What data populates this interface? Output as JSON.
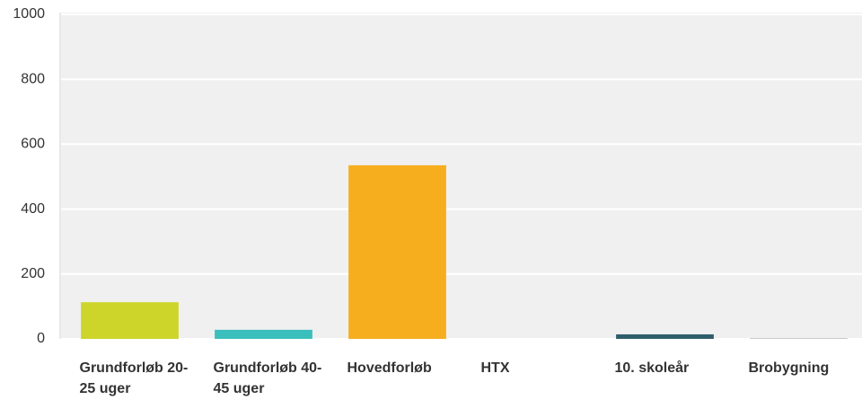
{
  "chart_data": {
    "type": "bar",
    "categories": [
      "Grundforløb 20-25 uger",
      "Grundforløb 40-45 uger",
      "Hovedforløb",
      "HTX",
      "10. skoleår",
      "Brobygning"
    ],
    "values": [
      113,
      28,
      535,
      0,
      14,
      2
    ],
    "colors": [
      "#cdd52a",
      "#3bbfbd",
      "#f6ae1f",
      "#999999",
      "#2f5e6b",
      "#b5b5b5"
    ],
    "ylim": [
      0,
      1000
    ],
    "yticks": [
      0,
      200,
      400,
      600,
      800,
      1000
    ],
    "grid": true
  }
}
